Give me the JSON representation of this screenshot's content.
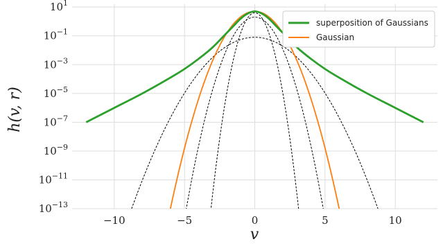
{
  "chart_data": {
    "type": "line",
    "title": "",
    "xlabel": "v",
    "ylabel": "h(v, r)",
    "xlim": [
      -13.0,
      13.0
    ],
    "ylim_exponent": [
      -13,
      1.2
    ],
    "yscale": "log",
    "grid": true,
    "legend_position": "top-right",
    "x_ticks": [
      -10,
      -5,
      0,
      5,
      10
    ],
    "x_tick_labels": [
      "−10",
      "−5",
      "0",
      "5",
      "10"
    ],
    "y_ticks": [
      1,
      -1,
      -3,
      -5,
      -7,
      -9,
      -11,
      -13
    ],
    "y_tick_labels": [
      {
        "base": "10",
        "exp": "1"
      },
      {
        "base": "10",
        "exp": "−1"
      },
      {
        "base": "10",
        "exp": "−3"
      },
      {
        "base": "10",
        "exp": "−5"
      },
      {
        "base": "10",
        "exp": "−7"
      },
      {
        "base": "10",
        "exp": "−9"
      },
      {
        "base": "10",
        "exp": "−11"
      },
      {
        "base": "10",
        "exp": "−13"
      }
    ],
    "series": [
      {
        "name": "superposition of Gaussians",
        "color": "#2ca02c",
        "style": "solid",
        "x": [
          -12,
          -10,
          -8,
          -6,
          -5,
          -4,
          -3,
          -2,
          -1.5,
          -1,
          -0.5,
          0,
          0.5,
          1,
          1.5,
          2,
          3,
          4,
          5,
          6,
          8,
          10,
          12
        ],
        "log10_y": [
          -7.0,
          -6.0,
          -5.0,
          -3.9,
          -3.3,
          -2.6,
          -1.8,
          -0.8,
          -0.3,
          0.2,
          0.55,
          0.7,
          0.55,
          0.2,
          -0.3,
          -0.8,
          -1.8,
          -2.6,
          -3.3,
          -3.9,
          -5.0,
          -6.0,
          -7.0
        ]
      },
      {
        "name": "Gaussian",
        "color": "#ff7f0e",
        "style": "solid",
        "gaussian": {
          "peak_log10": 0.7,
          "k": 0.38
        }
      }
    ],
    "dashed_components": [
      {
        "color": "#000000",
        "peak_log10": 0.6,
        "k": 1.4
      },
      {
        "color": "#000000",
        "peak_log10": 0.3,
        "k": 0.56
      },
      {
        "color": "#000000",
        "peak_log10": -1.1,
        "k": 0.155
      }
    ]
  }
}
